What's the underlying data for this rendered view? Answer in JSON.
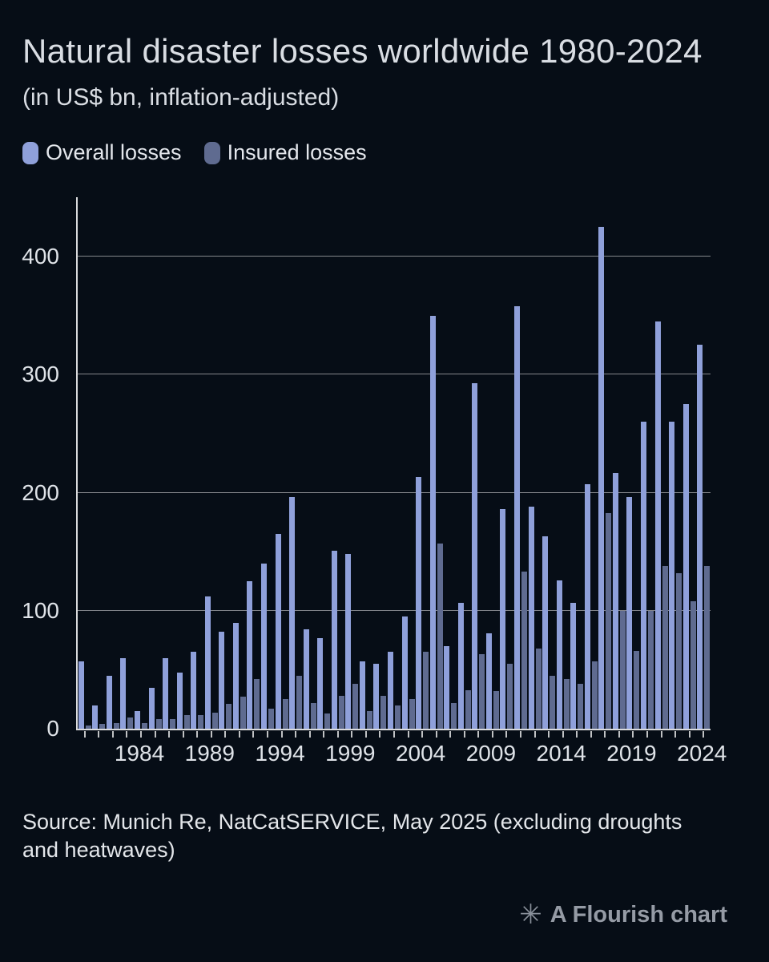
{
  "header": {
    "title": "Natural disaster losses worldwide 1980-2024",
    "subtitle": "(in US$ bn, inflation-adjusted)"
  },
  "legend": [
    {
      "label": "Overall losses",
      "color": "#8fa0da"
    },
    {
      "label": "Insured losses",
      "color": "#5f6b90"
    }
  ],
  "chart_data": {
    "type": "bar",
    "title": "Natural disaster losses worldwide 1980-2024",
    "subtitle": "(in US$ bn, inflation-adjusted)",
    "ylabel": "US$ bn",
    "ylim": [
      0,
      450
    ],
    "yticks": [
      0,
      100,
      200,
      300,
      400
    ],
    "grid": "horizontal",
    "legend_position": "top",
    "xtick_labels": [
      "1984",
      "1989",
      "1994",
      "1999",
      "2004",
      "2009",
      "2014",
      "2019",
      "2024"
    ],
    "years": [
      1980,
      1981,
      1982,
      1983,
      1984,
      1985,
      1986,
      1987,
      1988,
      1989,
      1990,
      1991,
      1992,
      1993,
      1994,
      1995,
      1996,
      1997,
      1998,
      1999,
      2000,
      2001,
      2002,
      2003,
      2004,
      2005,
      2006,
      2007,
      2008,
      2009,
      2010,
      2011,
      2012,
      2013,
      2014,
      2015,
      2016,
      2017,
      2018,
      2019,
      2020,
      2021,
      2022,
      2023,
      2024
    ],
    "series": [
      {
        "name": "Overall losses",
        "color": "#8fa0da",
        "values": [
          57,
          20,
          45,
          60,
          15,
          35,
          60,
          48,
          65,
          112,
          82,
          90,
          125,
          140,
          165,
          196,
          84,
          77,
          151,
          148,
          57,
          55,
          65,
          95,
          213,
          350,
          70,
          107,
          293,
          81,
          186,
          358,
          188,
          163,
          126,
          107,
          207,
          425,
          217,
          196,
          260,
          345,
          260,
          275,
          325
        ]
      },
      {
        "name": "Insured losses",
        "color": "#5f6b90",
        "values": [
          3,
          4,
          5,
          10,
          5,
          8,
          8,
          12,
          12,
          14,
          21,
          27,
          42,
          17,
          25,
          45,
          22,
          13,
          28,
          38,
          15,
          28,
          20,
          25,
          65,
          157,
          22,
          33,
          63,
          32,
          55,
          133,
          68,
          45,
          42,
          38,
          57,
          183,
          100,
          66,
          100,
          138,
          132,
          108,
          138
        ]
      }
    ]
  },
  "footer": {
    "source": "Source: Munich Re, NatCatSERVICE, May 2025 (excluding droughts and heatwaves)",
    "credit": "A Flourish chart",
    "credit_icon": "✳"
  }
}
